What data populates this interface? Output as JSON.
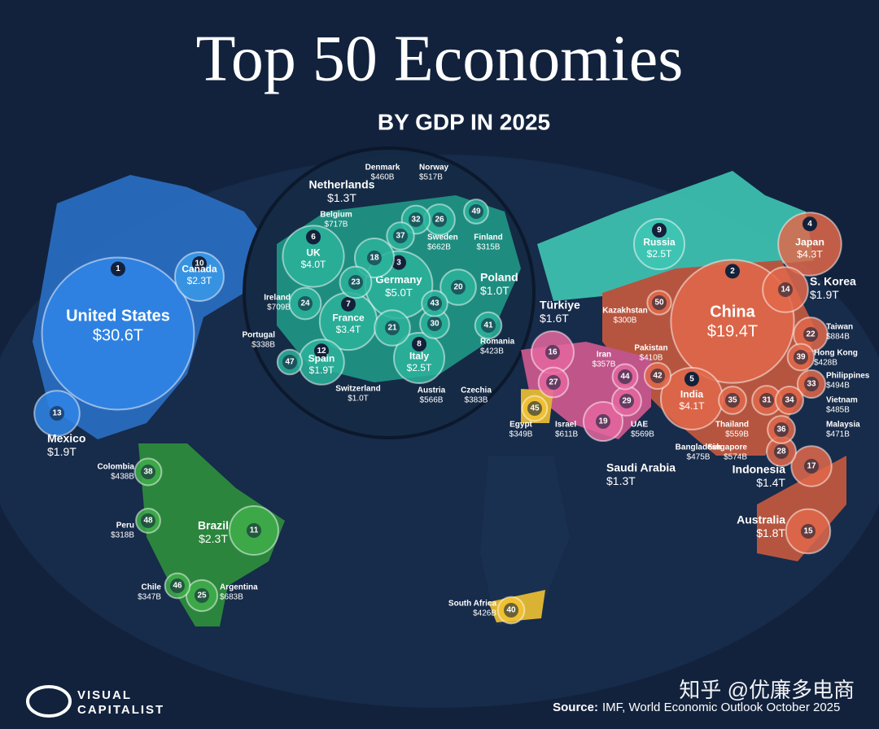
{
  "header": {
    "title": "Top 50 Economies",
    "subtitle": "BY GDP IN 2025"
  },
  "countries": [
    {
      "rank": 1,
      "name": "United States",
      "gdp": {
        "value": 30600,
        "label": "$30.6T"
      },
      "color": "#2f86e8"
    },
    {
      "rank": 2,
      "name": "China",
      "gdp": {
        "value": 19400,
        "label": "$19.4T"
      },
      "color": "#e2684a"
    },
    {
      "rank": 3,
      "name": "Germany",
      "gdp": {
        "value": 5000,
        "label": "$5.0T"
      },
      "color": "#2bb39b"
    },
    {
      "rank": 4,
      "name": "Japan",
      "gdp": {
        "value": 4300,
        "label": "$4.3T"
      },
      "color": "#e2684a"
    },
    {
      "rank": 5,
      "name": "India",
      "gdp": {
        "value": 4100,
        "label": "$4.1T"
      },
      "color": "#e2684a"
    },
    {
      "rank": 6,
      "name": "UK",
      "gdp": {
        "value": 4000,
        "label": "$4.0T"
      },
      "color": "#2bb39b"
    },
    {
      "rank": 7,
      "name": "France",
      "gdp": {
        "value": 3400,
        "label": "$3.4T"
      },
      "color": "#2bb39b"
    },
    {
      "rank": 8,
      "name": "Italy",
      "gdp": {
        "value": 2500,
        "label": "$2.5T"
      },
      "color": "#2bb39b"
    },
    {
      "rank": 9,
      "name": "Russia",
      "gdp": {
        "value": 2500,
        "label": "$2.5T"
      },
      "color": "#3fc7b4"
    },
    {
      "rank": 10,
      "name": "Canada",
      "gdp": {
        "value": 2300,
        "label": "$2.3T"
      },
      "color": "#3a9be8"
    },
    {
      "rank": 11,
      "name": "Brazil",
      "gdp": {
        "value": 2300,
        "label": "$2.3T"
      },
      "color": "#3fae4a"
    },
    {
      "rank": 12,
      "name": "Spain",
      "gdp": {
        "value": 1900,
        "label": "$1.9T"
      },
      "color": "#2bb39b"
    },
    {
      "rank": 13,
      "name": "Mexico",
      "gdp": {
        "value": 1900,
        "label": "$1.9T"
      },
      "color": "#2f86e8"
    },
    {
      "rank": 14,
      "name": "S. Korea",
      "gdp": {
        "value": 1900,
        "label": "$1.9T"
      },
      "color": "#e2684a"
    },
    {
      "rank": 15,
      "name": "Australia",
      "gdp": {
        "value": 1800,
        "label": "$1.8T"
      },
      "color": "#e2684a"
    },
    {
      "rank": 16,
      "name": "Türkiye",
      "gdp": {
        "value": 1600,
        "label": "$1.6T"
      },
      "color": "#e5679f"
    },
    {
      "rank": 17,
      "name": "Indonesia",
      "gdp": {
        "value": 1400,
        "label": "$1.4T"
      },
      "color": "#e2684a"
    },
    {
      "rank": 18,
      "name": "Netherlands",
      "gdp": {
        "value": 1300,
        "label": "$1.3T"
      },
      "color": "#2bb39b"
    },
    {
      "rank": 19,
      "name": "Saudi Arabia",
      "gdp": {
        "value": 1300,
        "label": "$1.3T"
      },
      "color": "#e5679f"
    },
    {
      "rank": 20,
      "name": "Poland",
      "gdp": {
        "value": 1000,
        "label": "$1.0T"
      },
      "color": "#2bb39b"
    },
    {
      "rank": 21,
      "name": "Switzerland",
      "gdp": {
        "value": 1000,
        "label": "$1.0T"
      },
      "color": "#2bb39b"
    },
    {
      "rank": 22,
      "name": "Taiwan",
      "gdp": {
        "value": 884,
        "label": "$884B"
      },
      "color": "#e2684a"
    },
    {
      "rank": 23,
      "name": "Belgium",
      "gdp": {
        "value": 717,
        "label": "$717B"
      },
      "color": "#2bb39b"
    },
    {
      "rank": 24,
      "name": "Ireland",
      "gdp": {
        "value": 709,
        "label": "$709B"
      },
      "color": "#2bb39b"
    },
    {
      "rank": 25,
      "name": "Argentina",
      "gdp": {
        "value": 683,
        "label": "$683B"
      },
      "color": "#3fae4a"
    },
    {
      "rank": 26,
      "name": "Sweden",
      "gdp": {
        "value": 662,
        "label": "$662B"
      },
      "color": "#2bb39b"
    },
    {
      "rank": 27,
      "name": "Israel",
      "gdp": {
        "value": 611,
        "label": "$611B"
      },
      "color": "#e5679f"
    },
    {
      "rank": 28,
      "name": "Singapore",
      "gdp": {
        "value": 574,
        "label": "$574B"
      },
      "color": "#e2684a"
    },
    {
      "rank": 29,
      "name": "UAE",
      "gdp": {
        "value": 569,
        "label": "$569B"
      },
      "color": "#e5679f"
    },
    {
      "rank": 30,
      "name": "Austria",
      "gdp": {
        "value": 566,
        "label": "$566B"
      },
      "color": "#2bb39b"
    },
    {
      "rank": 31,
      "name": "Thailand",
      "gdp": {
        "value": 559,
        "label": "$559B"
      },
      "color": "#e2684a"
    },
    {
      "rank": 32,
      "name": "Norway",
      "gdp": {
        "value": 517,
        "label": "$517B"
      },
      "color": "#2bb39b"
    },
    {
      "rank": 33,
      "name": "Philippines",
      "gdp": {
        "value": 494,
        "label": "$494B"
      },
      "color": "#e2684a"
    },
    {
      "rank": 34,
      "name": "Vietnam",
      "gdp": {
        "value": 485,
        "label": "$485B"
      },
      "color": "#e2684a"
    },
    {
      "rank": 35,
      "name": "Bangladesh",
      "gdp": {
        "value": 475,
        "label": "$475B"
      },
      "color": "#e2684a"
    },
    {
      "rank": 36,
      "name": "Malaysia",
      "gdp": {
        "value": 471,
        "label": "$471B"
      },
      "color": "#e2684a"
    },
    {
      "rank": 37,
      "name": "Denmark",
      "gdp": {
        "value": 460,
        "label": "$460B"
      },
      "color": "#2bb39b"
    },
    {
      "rank": 38,
      "name": "Colombia",
      "gdp": {
        "value": 438,
        "label": "$438B"
      },
      "color": "#3fae4a"
    },
    {
      "rank": 39,
      "name": "Hong Kong",
      "gdp": {
        "value": 428,
        "label": "$428B"
      },
      "color": "#e2684a"
    },
    {
      "rank": 40,
      "name": "South Africa",
      "gdp": {
        "value": 426,
        "label": "$426B"
      },
      "color": "#f1c232"
    },
    {
      "rank": 41,
      "name": "Romania",
      "gdp": {
        "value": 423,
        "label": "$423B"
      },
      "color": "#2bb39b"
    },
    {
      "rank": 42,
      "name": "Pakistan",
      "gdp": {
        "value": 410,
        "label": "$410B"
      },
      "color": "#e2684a"
    },
    {
      "rank": 43,
      "name": "Czechia",
      "gdp": {
        "value": 383,
        "label": "$383B"
      },
      "color": "#2bb39b"
    },
    {
      "rank": 44,
      "name": "Iran",
      "gdp": {
        "value": 357,
        "label": "$357B"
      },
      "color": "#e5679f"
    },
    {
      "rank": 45,
      "name": "Egypt",
      "gdp": {
        "value": 349,
        "label": "$349B"
      },
      "color": "#f1c232"
    },
    {
      "rank": 46,
      "name": "Chile",
      "gdp": {
        "value": 347,
        "label": "$347B"
      },
      "color": "#3fae4a"
    },
    {
      "rank": 47,
      "name": "Portugal",
      "gdp": {
        "value": 338,
        "label": "$338B"
      },
      "color": "#2bb39b"
    },
    {
      "rank": 48,
      "name": "Peru",
      "gdp": {
        "value": 318,
        "label": "$318B"
      },
      "color": "#3fae4a"
    },
    {
      "rank": 49,
      "name": "Finland",
      "gdp": {
        "value": 315,
        "label": "$315B"
      },
      "color": "#2bb39b"
    },
    {
      "rank": 50,
      "name": "Kazakhstan",
      "gdp": {
        "value": 300,
        "label": "$300B"
      },
      "color": "#e2684a"
    }
  ],
  "logo": {
    "line1": "VISUAL",
    "line2": "CAPITALIST"
  },
  "source": {
    "label": "Source:",
    "text": "IMF, World Economic Outlook October 2025"
  },
  "watermark": "知乎 @优廉多电商"
}
